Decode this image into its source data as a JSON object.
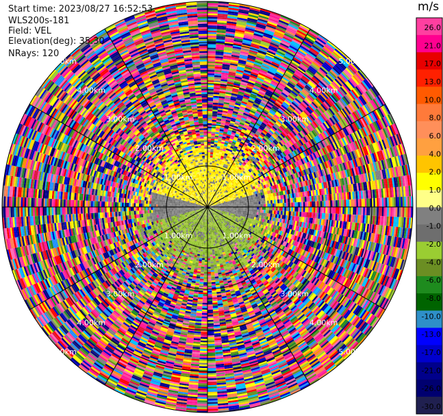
{
  "header": {
    "start_time": "Start time: 2023/08/27 16:52:53",
    "instrument": "WLS200s-181",
    "field": "Field: VEL",
    "elevation": "Elevation(deg): 35.30",
    "nrays": "NRays: 120"
  },
  "chart_data": {
    "type": "heatmap",
    "projection": "polar-ppi",
    "field": "VEL",
    "units": "m/s",
    "nrays": 120,
    "elevation_deg": 35.3,
    "max_range_km": 5.0,
    "range_rings_km": [
      1,
      2,
      3,
      4,
      5
    ],
    "range_ring_labels": [
      "1.00km",
      "2.00km",
      "3.00km",
      "4.00km",
      "5.00km"
    ],
    "colorbar": {
      "label": "m/s",
      "ticks": [
        "26.0",
        "21.0",
        "17.0",
        "13.0",
        "10.0",
        "8.0",
        "6.0",
        "4.0",
        "2.0",
        "1.0",
        "0.0",
        "-1.0",
        "-2.0",
        "-4.0",
        "-6.0",
        "-8.0",
        "-10.0",
        "-13.0",
        "-17.0",
        "-21.0",
        "-26.0",
        "-30.0"
      ],
      "colors": [
        "#ff3fa0",
        "#ff0090",
        "#e80000",
        "#ff2000",
        "#ff5a00",
        "#ff7a3a",
        "#ff8f5a",
        "#ffa040",
        "#ffc400",
        "#ffff00",
        "#ffff88",
        "#808080",
        "#6e6e6e",
        "#9acd32",
        "#6b8e23",
        "#1e8b1e",
        "#006400",
        "#2e8fc8",
        "#0000ff",
        "#0000cd",
        "#00008b",
        "#000070",
        "#202050"
      ]
    },
    "near_field": {
      "description_units": "km",
      "north_half_values_ms": [
        1.0,
        2.0
      ],
      "south_half_values_ms": [
        -1.0,
        -2.0
      ],
      "calm_sector_value_ms": 0.0,
      "signal_extent_km": 2.0
    }
  }
}
